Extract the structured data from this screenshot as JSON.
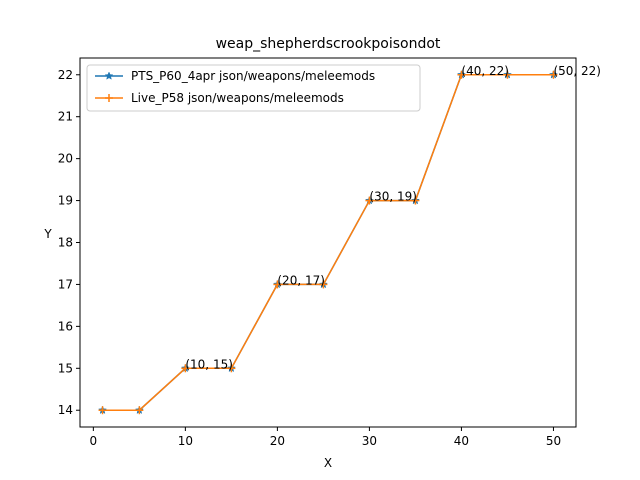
{
  "chart_data": {
    "type": "line",
    "title": "weap_shepherdscrookpoisondot",
    "xlabel": "X",
    "ylabel": "Y",
    "xlim": [
      -1.45,
      52.45
    ],
    "ylim": [
      13.6,
      22.4
    ],
    "xticks": [
      0,
      10,
      20,
      30,
      40,
      50
    ],
    "yticks": [
      14,
      15,
      16,
      17,
      18,
      19,
      20,
      21,
      22
    ],
    "grid": false,
    "legend_position": "top-left",
    "x": [
      1,
      5,
      10,
      15,
      20,
      25,
      30,
      35,
      40,
      45,
      50
    ],
    "series": [
      {
        "name": "PTS_P60_4apr json/weapons/meleemods",
        "color": "#1f77b4",
        "marker": "star",
        "values": [
          14,
          14,
          15,
          15,
          17,
          17,
          19,
          19,
          22,
          22,
          22
        ]
      },
      {
        "name": "Live_P58 json/weapons/meleemods",
        "color": "#ff7f0e",
        "marker": "plus",
        "values": [
          14,
          14,
          15,
          15,
          17,
          17,
          19,
          19,
          22,
          22,
          22
        ]
      }
    ],
    "annotations": [
      {
        "x": 10,
        "y": 15,
        "text": "(10, 15)"
      },
      {
        "x": 20,
        "y": 17,
        "text": "(20, 17)"
      },
      {
        "x": 30,
        "y": 19,
        "text": "(30, 19)"
      },
      {
        "x": 40,
        "y": 22,
        "text": "(40, 22)"
      },
      {
        "x": 50,
        "y": 22,
        "text": "(50, 22)"
      }
    ]
  }
}
